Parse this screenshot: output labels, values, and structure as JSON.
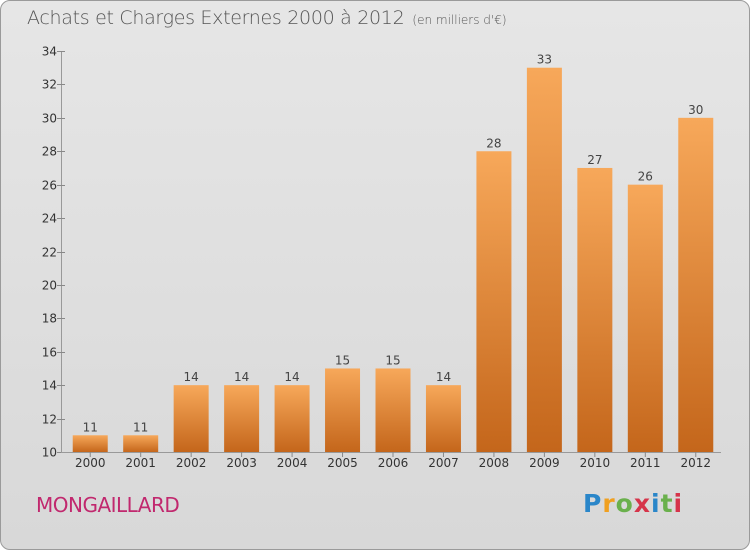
{
  "header": {
    "title": "Achats et Charges Externes 2000 à 2012",
    "subtitle": "(en milliers d'€)"
  },
  "footer": {
    "place": "MONGAILLARD",
    "brand": "Proxiti"
  },
  "colors": {
    "bar_top": "#f7a85a",
    "bar_bottom": "#c4661b",
    "place": "#c1286e"
  },
  "chart_data": {
    "type": "bar",
    "title": "Achats et Charges Externes 2000 à 2012",
    "subtitle": "(en milliers d'€)",
    "categories": [
      "2000",
      "2001",
      "2002",
      "2003",
      "2004",
      "2005",
      "2006",
      "2007",
      "2008",
      "2009",
      "2010",
      "2011",
      "2012"
    ],
    "values": [
      11,
      11,
      14,
      14,
      14,
      15,
      15,
      14,
      28,
      33,
      27,
      26,
      30
    ],
    "ylim": [
      10,
      34
    ],
    "yticks": [
      10,
      12,
      14,
      16,
      18,
      20,
      22,
      24,
      26,
      28,
      30,
      32,
      34
    ],
    "grid": false,
    "legend": "none"
  }
}
